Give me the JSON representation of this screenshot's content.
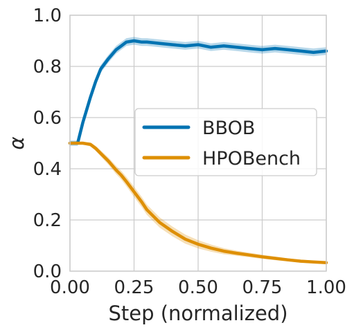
{
  "chart_data": {
    "type": "line",
    "xlabel": "Step (normalized)",
    "ylabel": "α",
    "xlim": [
      0.0,
      1.0
    ],
    "ylim": [
      0.0,
      1.0
    ],
    "xticks": [
      "0.00",
      "0.25",
      "0.50",
      "0.75",
      "1.00"
    ],
    "yticks": [
      "0.0",
      "0.2",
      "0.4",
      "0.6",
      "0.8",
      "1.0"
    ],
    "grid": true,
    "legend": "center-right",
    "x": [
      0.0,
      0.03,
      0.05,
      0.08,
      0.1,
      0.12,
      0.15,
      0.18,
      0.2,
      0.22,
      0.25,
      0.28,
      0.3,
      0.35,
      0.4,
      0.45,
      0.5,
      0.55,
      0.6,
      0.65,
      0.7,
      0.75,
      0.8,
      0.85,
      0.9,
      0.95,
      1.0
    ],
    "series": [
      {
        "name": "BBOB",
        "color": "#0173b2",
        "values": [
          0.5,
          0.5,
          0.58,
          0.68,
          0.74,
          0.79,
          0.83,
          0.865,
          0.88,
          0.895,
          0.9,
          0.895,
          0.895,
          0.89,
          0.885,
          0.88,
          0.885,
          0.875,
          0.88,
          0.875,
          0.87,
          0.865,
          0.87,
          0.865,
          0.86,
          0.855,
          0.86
        ],
        "band": [
          0.01,
          0.01,
          0.015,
          0.015,
          0.015,
          0.015,
          0.015,
          0.015,
          0.015,
          0.015,
          0.015,
          0.015,
          0.015,
          0.015,
          0.015,
          0.015,
          0.015,
          0.015,
          0.015,
          0.015,
          0.015,
          0.015,
          0.015,
          0.015,
          0.015,
          0.015,
          0.015
        ]
      },
      {
        "name": "HPOBench",
        "color": "#de8f05",
        "values": [
          0.5,
          0.5,
          0.5,
          0.495,
          0.48,
          0.46,
          0.43,
          0.395,
          0.375,
          0.35,
          0.31,
          0.27,
          0.24,
          0.19,
          0.155,
          0.125,
          0.105,
          0.09,
          0.078,
          0.07,
          0.063,
          0.056,
          0.05,
          0.044,
          0.039,
          0.036,
          0.033
        ],
        "band": [
          0.005,
          0.005,
          0.005,
          0.008,
          0.01,
          0.012,
          0.014,
          0.016,
          0.017,
          0.018,
          0.02,
          0.02,
          0.02,
          0.02,
          0.019,
          0.018,
          0.016,
          0.014,
          0.012,
          0.01,
          0.009,
          0.008,
          0.007,
          0.006,
          0.006,
          0.005,
          0.005
        ]
      }
    ]
  }
}
